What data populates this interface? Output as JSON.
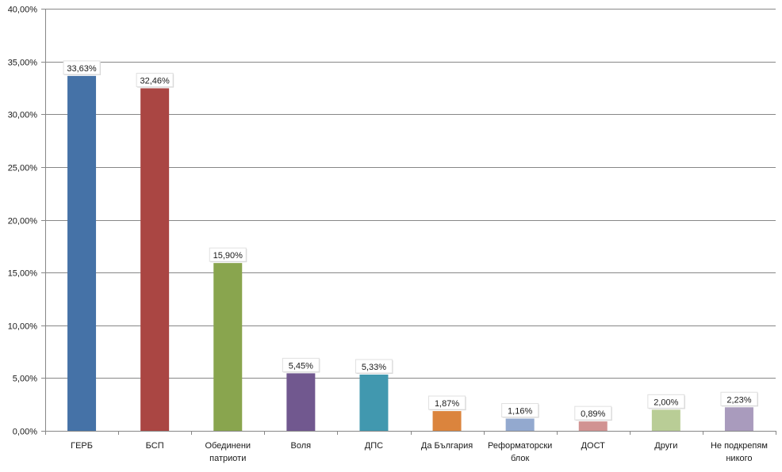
{
  "chart_data": {
    "type": "bar",
    "title": "",
    "xlabel": "",
    "ylabel": "",
    "ylim": [
      0,
      40
    ],
    "yticks": [
      "0,00%",
      "5,00%",
      "10,00%",
      "15,00%",
      "20,00%",
      "25,00%",
      "30,00%",
      "35,00%",
      "40,00%"
    ],
    "grid": true,
    "legend": "none",
    "categories": [
      [
        "ГЕРБ"
      ],
      [
        "БСП"
      ],
      [
        "Обединени",
        "патриоти"
      ],
      [
        "Воля"
      ],
      [
        "ДПС"
      ],
      [
        "Да България"
      ],
      [
        "Реформаторски",
        "блок"
      ],
      [
        "ДОСТ"
      ],
      [
        "Други"
      ],
      [
        "Не подкрепям",
        "никого"
      ]
    ],
    "values": [
      33.63,
      32.46,
      15.9,
      5.45,
      5.33,
      1.87,
      1.16,
      0.89,
      2.0,
      2.23
    ],
    "data_labels": [
      "33,63%",
      "32,46%",
      "15,90%",
      "5,45%",
      "5,33%",
      "1,87%",
      "1,16%",
      "0,89%",
      "2,00%",
      "2,23%"
    ],
    "colors": [
      "#4572A7",
      "#AA4643",
      "#89A54E",
      "#71588F",
      "#4198AF",
      "#DB843D",
      "#93A9CF",
      "#D19392",
      "#B9CD96",
      "#A99BBD"
    ]
  }
}
